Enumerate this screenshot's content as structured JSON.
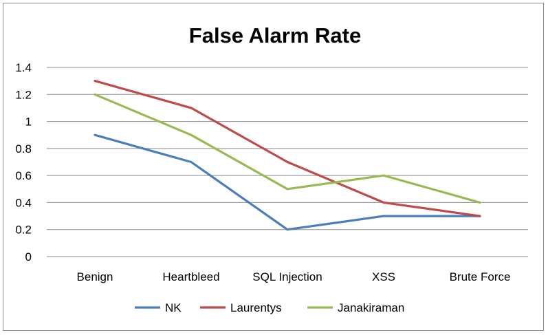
{
  "chart_data": {
    "type": "line",
    "title": "False Alarm Rate",
    "categories": [
      "Benign",
      "Heartbleed",
      "SQL Injection",
      "XSS",
      "Brute Force"
    ],
    "ylim": [
      0,
      1.4
    ],
    "yticks": [
      "1.4",
      "1.2",
      "1",
      "0.8",
      "0.6",
      "0.4",
      "0.2",
      "0"
    ],
    "grid": true,
    "legend_position": "bottom",
    "series": [
      {
        "name": "NK",
        "color": "#4a7ebb",
        "values": [
          0.9,
          0.7,
          0.2,
          0.3,
          0.3
        ]
      },
      {
        "name": "Laurentys",
        "color": "#be4b48",
        "values": [
          1.3,
          1.1,
          0.7,
          0.4,
          0.3
        ]
      },
      {
        "name": "Janakiraman",
        "color": "#98b954",
        "values": [
          1.2,
          0.9,
          0.5,
          0.6,
          0.4
        ]
      }
    ]
  }
}
